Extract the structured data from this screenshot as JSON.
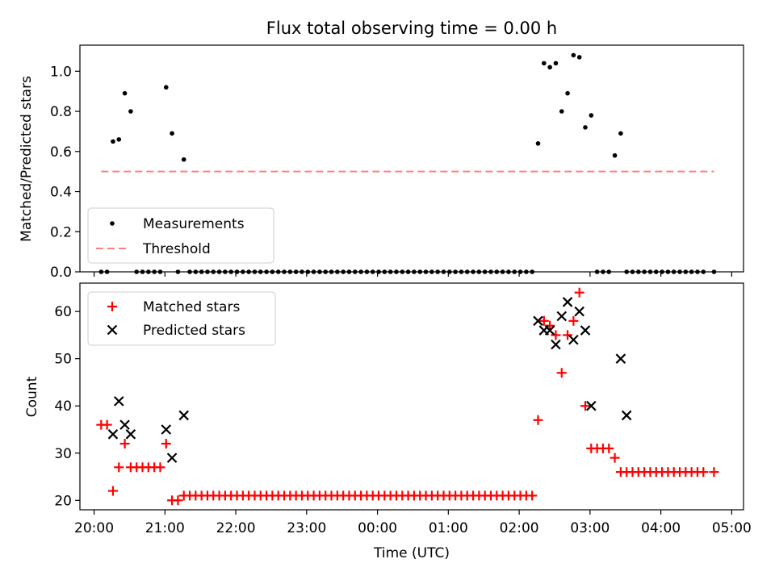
{
  "title": "Flux total observing time = 0.00 h",
  "chart_data": [
    {
      "type": "scatter",
      "panel": "top",
      "ylabel": "Matched/Predicted stars",
      "ylim": [
        0,
        1.13
      ],
      "yticks": [
        0.0,
        0.2,
        0.4,
        0.6,
        0.8,
        1.0
      ],
      "ytick_labels": [
        "0.0",
        "0.2",
        "0.4",
        "0.6",
        "0.8",
        "1.0"
      ],
      "xlim": [
        "20:00",
        "05:00"
      ],
      "legend_position": "lower-left",
      "legend": [
        {
          "label": "Measurements",
          "marker": "dot",
          "color": "#000000"
        },
        {
          "label": "Threshold",
          "marker": "dashed-line",
          "color": "#ff7f7f"
        }
      ],
      "threshold": {
        "value": 0.5,
        "x_start": "20:06",
        "x_end": "04:45",
        "color": "#ff7f7f",
        "style": "dashed"
      },
      "series": [
        {
          "name": "Measurements",
          "color": "#000000",
          "x": [
            "20:06",
            "20:11",
            "20:16",
            "20:21",
            "20:26",
            "20:31",
            "20:36",
            "20:41",
            "20:46",
            "20:51",
            "20:56",
            "21:01",
            "21:06",
            "21:11",
            "21:16",
            "21:21",
            "21:26",
            "21:31",
            "21:36",
            "21:41",
            "21:46",
            "21:51",
            "21:56",
            "22:01",
            "22:06",
            "22:11",
            "22:16",
            "22:21",
            "22:26",
            "22:31",
            "22:36",
            "22:41",
            "22:46",
            "22:51",
            "22:56",
            "23:01",
            "23:06",
            "23:11",
            "23:16",
            "23:21",
            "23:26",
            "23:31",
            "23:36",
            "23:41",
            "23:46",
            "23:51",
            "23:56",
            "00:01",
            "00:06",
            "00:11",
            "00:16",
            "00:21",
            "00:26",
            "00:31",
            "00:36",
            "00:41",
            "00:46",
            "00:51",
            "00:56",
            "01:01",
            "01:06",
            "01:11",
            "01:16",
            "01:21",
            "01:26",
            "01:31",
            "01:36",
            "01:41",
            "01:46",
            "01:51",
            "01:56",
            "02:01",
            "02:06",
            "02:11",
            "02:16",
            "02:21",
            "02:26",
            "02:31",
            "02:36",
            "02:41",
            "02:46",
            "02:51",
            "02:56",
            "03:01",
            "03:06",
            "03:11",
            "03:16",
            "03:21",
            "03:26",
            "03:31",
            "03:36",
            "03:41",
            "03:46",
            "03:51",
            "03:56",
            "04:01",
            "04:06",
            "04:11",
            "04:16",
            "04:21",
            "04:26",
            "04:31",
            "04:36",
            "04:45"
          ],
          "y": [
            0.0,
            0.0,
            0.65,
            0.66,
            0.89,
            0.8,
            0.0,
            0.0,
            0.0,
            0.0,
            0.0,
            0.92,
            0.69,
            0.0,
            0.56,
            0.0,
            0.0,
            0.0,
            0.0,
            0.0,
            0.0,
            0.0,
            0.0,
            0.0,
            0.0,
            0.0,
            0.0,
            0.0,
            0.0,
            0.0,
            0.0,
            0.0,
            0.0,
            0.0,
            0.0,
            0.0,
            0.0,
            0.0,
            0.0,
            0.0,
            0.0,
            0.0,
            0.0,
            0.0,
            0.0,
            0.0,
            0.0,
            0.0,
            0.0,
            0.0,
            0.0,
            0.0,
            0.0,
            0.0,
            0.0,
            0.0,
            0.0,
            0.0,
            0.0,
            0.0,
            0.0,
            0.0,
            0.0,
            0.0,
            0.0,
            0.0,
            0.0,
            0.0,
            0.0,
            0.0,
            0.0,
            0.0,
            0.0,
            0.0,
            0.64,
            1.04,
            1.02,
            1.04,
            0.8,
            0.89,
            1.08,
            1.07,
            0.72,
            0.78,
            0.0,
            0.0,
            0.0,
            0.58,
            0.69,
            0.0,
            0.0,
            0.0,
            0.0,
            0.0,
            0.0,
            0.0,
            0.0,
            0.0,
            0.0,
            0.0,
            0.0,
            0.0,
            0.0,
            0.0
          ]
        }
      ]
    },
    {
      "type": "scatter",
      "panel": "bottom",
      "xlabel": "Time (UTC)",
      "ylabel": "Count",
      "ylim": [
        18,
        66
      ],
      "yticks": [
        20,
        30,
        40,
        50,
        60
      ],
      "ytick_labels": [
        "20",
        "30",
        "40",
        "50",
        "60"
      ],
      "xlim": [
        "20:00",
        "05:00"
      ],
      "xticks": [
        "20:00",
        "21:00",
        "22:00",
        "23:00",
        "00:00",
        "01:00",
        "02:00",
        "03:00",
        "04:00",
        "05:00"
      ],
      "legend_position": "upper-left",
      "legend": [
        {
          "label": "Matched stars",
          "marker": "plus",
          "color": "#ff0000"
        },
        {
          "label": "Predicted stars",
          "marker": "x",
          "color": "#000000"
        }
      ],
      "series": [
        {
          "name": "Matched stars",
          "marker": "plus",
          "color": "#ff0000",
          "x": [
            "20:06",
            "20:11",
            "20:16",
            "20:21",
            "20:26",
            "20:31",
            "20:36",
            "20:41",
            "20:46",
            "20:51",
            "20:56",
            "21:01",
            "21:06",
            "21:11",
            "21:16",
            "21:21",
            "21:26",
            "21:31",
            "21:36",
            "21:41",
            "21:46",
            "21:51",
            "21:56",
            "22:01",
            "22:06",
            "22:11",
            "22:16",
            "22:21",
            "22:26",
            "22:31",
            "22:36",
            "22:41",
            "22:46",
            "22:51",
            "22:56",
            "23:01",
            "23:06",
            "23:11",
            "23:16",
            "23:21",
            "23:26",
            "23:31",
            "23:36",
            "23:41",
            "23:46",
            "23:51",
            "23:56",
            "00:01",
            "00:06",
            "00:11",
            "00:16",
            "00:21",
            "00:26",
            "00:31",
            "00:36",
            "00:41",
            "00:46",
            "00:51",
            "00:56",
            "01:01",
            "01:06",
            "01:11",
            "01:16",
            "01:21",
            "01:26",
            "01:31",
            "01:36",
            "01:41",
            "01:46",
            "01:51",
            "01:56",
            "02:01",
            "02:06",
            "02:11",
            "02:16",
            "02:21",
            "02:26",
            "02:31",
            "02:36",
            "02:41",
            "02:46",
            "02:51",
            "02:56",
            "03:01",
            "03:06",
            "03:11",
            "03:16",
            "03:21",
            "03:26",
            "03:31",
            "03:36",
            "03:41",
            "03:46",
            "03:51",
            "03:56",
            "04:01",
            "04:06",
            "04:11",
            "04:16",
            "04:21",
            "04:26",
            "04:31",
            "04:36",
            "04:45"
          ],
          "y": [
            36,
            36,
            22,
            27,
            32,
            27,
            27,
            27,
            27,
            27,
            27,
            32,
            20,
            20,
            21,
            21,
            21,
            21,
            21,
            21,
            21,
            21,
            21,
            21,
            21,
            21,
            21,
            21,
            21,
            21,
            21,
            21,
            21,
            21,
            21,
            21,
            21,
            21,
            21,
            21,
            21,
            21,
            21,
            21,
            21,
            21,
            21,
            21,
            21,
            21,
            21,
            21,
            21,
            21,
            21,
            21,
            21,
            21,
            21,
            21,
            21,
            21,
            21,
            21,
            21,
            21,
            21,
            21,
            21,
            21,
            21,
            21,
            21,
            21,
            37,
            58,
            57,
            55,
            47,
            55,
            58,
            64,
            40,
            31,
            31,
            31,
            31,
            29,
            26,
            26,
            26,
            26,
            26,
            26,
            26,
            26,
            26,
            26,
            26,
            26,
            26,
            26,
            26,
            26
          ]
        },
        {
          "name": "Predicted stars",
          "marker": "x",
          "color": "#000000",
          "x": [
            "20:16",
            "20:21",
            "20:26",
            "20:31",
            "21:01",
            "21:06",
            "21:16",
            "02:16",
            "02:21",
            "02:26",
            "02:31",
            "02:36",
            "02:41",
            "02:46",
            "02:51",
            "02:56",
            "03:01",
            "03:26",
            "03:31"
          ],
          "y": [
            34,
            41,
            36,
            34,
            35,
            29,
            38,
            58,
            56,
            56,
            53,
            59,
            62,
            54,
            60,
            56,
            40,
            50,
            38
          ]
        }
      ]
    }
  ]
}
